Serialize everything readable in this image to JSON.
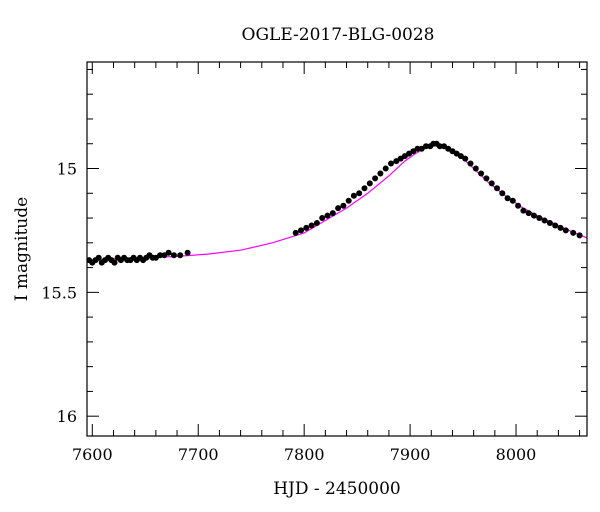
{
  "chart_data": {
    "type": "scatter",
    "title": "OGLE-2017-BLG-0028",
    "xlabel": "HJD - 2450000",
    "ylabel": "I magnitude",
    "xlim": [
      7595,
      8067
    ],
    "ylim": [
      16.08,
      14.57
    ],
    "y_inverted": true,
    "x_ticks": [
      7600,
      7700,
      7800,
      7900,
      8000
    ],
    "x_tick_labels": [
      "7600",
      "7700",
      "7800",
      "7900",
      "8000"
    ],
    "y_ticks": [
      15,
      15.5,
      16
    ],
    "y_tick_labels": [
      "15",
      "15.5",
      "16"
    ],
    "grid": false,
    "legend": "none",
    "series": [
      {
        "kind": "points",
        "color": "#000000",
        "x": [
          7597,
          7600,
          7603,
          7606,
          7609,
          7612,
          7615,
          7618,
          7621,
          7624,
          7627,
          7630,
          7633,
          7636,
          7639,
          7642,
          7645,
          7648,
          7651,
          7654,
          7657,
          7660,
          7664,
          7668,
          7672,
          7677,
          7683,
          7690,
          7792,
          7797,
          7802,
          7807,
          7812,
          7817,
          7822,
          7827,
          7832,
          7837,
          7842,
          7847,
          7852,
          7857,
          7862,
          7867,
          7872,
          7877,
          7882,
          7887,
          7891,
          7895,
          7899,
          7903,
          7907,
          7911,
          7915,
          7919,
          7922,
          7925,
          7928,
          7932,
          7936,
          7940,
          7944,
          7948,
          7952,
          7957,
          7962,
          7967,
          7972,
          7977,
          7982,
          7987,
          7992,
          7997,
          8002,
          8007,
          8012,
          8017,
          8022,
          8027,
          8032,
          8037,
          8042,
          8047,
          8054,
          8060
        ],
        "y": [
          15.37,
          15.38,
          15.37,
          15.36,
          15.38,
          15.37,
          15.36,
          15.37,
          15.38,
          15.36,
          15.37,
          15.36,
          15.37,
          15.37,
          15.36,
          15.37,
          15.36,
          15.37,
          15.36,
          15.35,
          15.36,
          15.36,
          15.35,
          15.35,
          15.34,
          15.35,
          15.35,
          15.34,
          15.26,
          15.25,
          15.24,
          15.23,
          15.22,
          15.2,
          15.19,
          15.18,
          15.16,
          15.15,
          15.13,
          15.11,
          15.1,
          15.08,
          15.06,
          15.04,
          15.02,
          15.0,
          14.98,
          14.97,
          14.96,
          14.95,
          14.94,
          14.93,
          14.92,
          14.92,
          14.91,
          14.91,
          14.9,
          14.9,
          14.91,
          14.91,
          14.92,
          14.93,
          14.94,
          14.95,
          14.96,
          14.98,
          15.0,
          15.02,
          15.04,
          15.06,
          15.08,
          15.1,
          15.12,
          15.13,
          15.15,
          15.17,
          15.18,
          15.19,
          15.2,
          15.21,
          15.22,
          15.23,
          15.24,
          15.25,
          15.26,
          15.27
        ]
      },
      {
        "kind": "model-line",
        "color": "#ff00ff",
        "x": [
          7595,
          7620,
          7650,
          7680,
          7710,
          7740,
          7770,
          7800,
          7820,
          7840,
          7860,
          7880,
          7895,
          7905,
          7915,
          7922,
          7930,
          7940,
          7950,
          7960,
          7975,
          7990,
          8005,
          8020,
          8035,
          8050,
          8067
        ],
        "y": [
          15.37,
          15.365,
          15.36,
          15.355,
          15.345,
          15.33,
          15.3,
          15.26,
          15.21,
          15.16,
          15.1,
          15.03,
          14.97,
          14.94,
          14.915,
          14.905,
          14.91,
          14.925,
          14.96,
          15.0,
          15.06,
          15.11,
          15.155,
          15.19,
          15.22,
          15.25,
          15.28
        ]
      }
    ]
  }
}
